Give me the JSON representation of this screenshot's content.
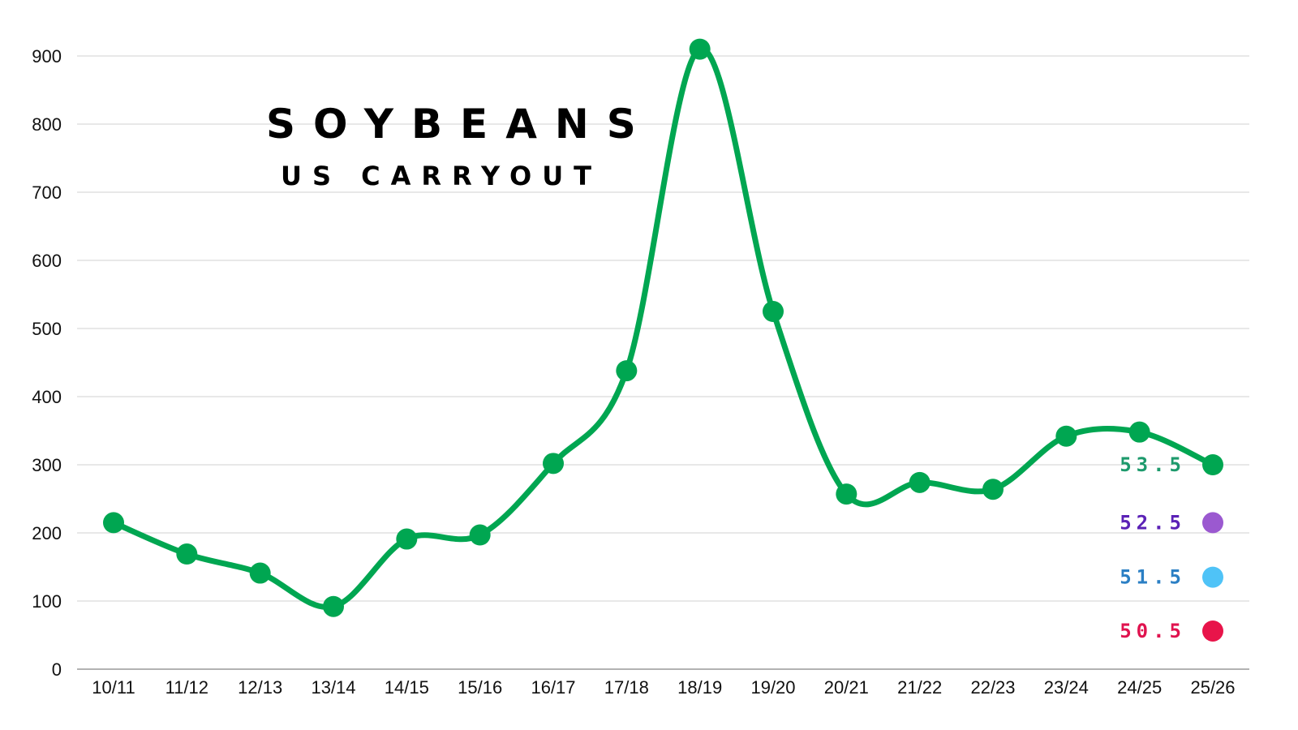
{
  "chart_data": {
    "type": "line",
    "title": "SOYBEANS",
    "subtitle": "US CARRYOUT",
    "xlabel": "",
    "ylabel": "",
    "ylim": [
      0,
      900
    ],
    "yticks": [
      0,
      100,
      200,
      300,
      400,
      500,
      600,
      700,
      800,
      900
    ],
    "grid": true,
    "categories": [
      "10/11",
      "11/12",
      "12/13",
      "13/14",
      "14/15",
      "15/16",
      "16/17",
      "17/18",
      "18/19",
      "19/20",
      "20/21",
      "21/22",
      "22/23",
      "23/24",
      "24/25",
      "25/26"
    ],
    "series": [
      {
        "color": "#00a651",
        "values": [
          215,
          169,
          141,
          92,
          191,
          197,
          302,
          438,
          910,
          525,
          257,
          274,
          264,
          342,
          348,
          300
        ]
      }
    ],
    "annotations": [
      {
        "label": "53.5",
        "value": 300,
        "color": "#1d9a6c",
        "marker_color": ""
      },
      {
        "label": "52.5",
        "value": 215,
        "color": "#5b21b6",
        "marker_color": "#9b59d0"
      },
      {
        "label": "51.5",
        "value": 135,
        "color": "#2b7fc4",
        "marker_color": "#4fc3f7"
      },
      {
        "label": "50.5",
        "value": 56,
        "color": "#e0134f",
        "marker_color": "#e8144a"
      }
    ]
  }
}
